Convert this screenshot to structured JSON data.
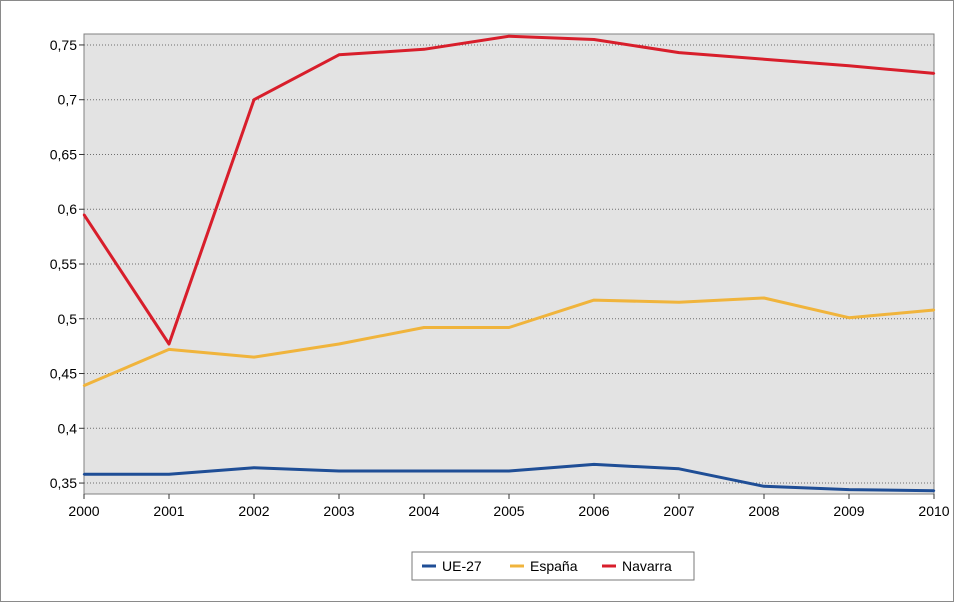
{
  "chart_data": {
    "type": "line",
    "title": "",
    "xlabel": "",
    "ylabel": "",
    "x": [
      "2000",
      "2001",
      "2002",
      "2003",
      "2004",
      "2005",
      "2006",
      "2007",
      "2008",
      "2009",
      "2010"
    ],
    "ylim": [
      0.34,
      0.76
    ],
    "yticks": [
      "0,35",
      "0,4",
      "0,45",
      "0,5",
      "0,55",
      "0,6",
      "0,65",
      "0,7",
      "0,75"
    ],
    "grid": true,
    "legend_position": "bottom",
    "series": [
      {
        "name": "UE-27",
        "color": "#1f4e96",
        "values": [
          0.358,
          0.358,
          0.364,
          0.361,
          0.361,
          0.361,
          0.367,
          0.363,
          0.347,
          0.344,
          0.343
        ]
      },
      {
        "name": "España",
        "color": "#f0b43c",
        "values": [
          0.439,
          0.472,
          0.465,
          0.477,
          0.492,
          0.492,
          0.517,
          0.515,
          0.519,
          0.501,
          0.508
        ]
      },
      {
        "name": "Navarra",
        "color": "#d81e2b",
        "values": [
          0.595,
          0.477,
          0.7,
          0.741,
          0.746,
          0.758,
          0.755,
          0.743,
          0.737,
          0.731,
          0.724
        ]
      }
    ]
  }
}
